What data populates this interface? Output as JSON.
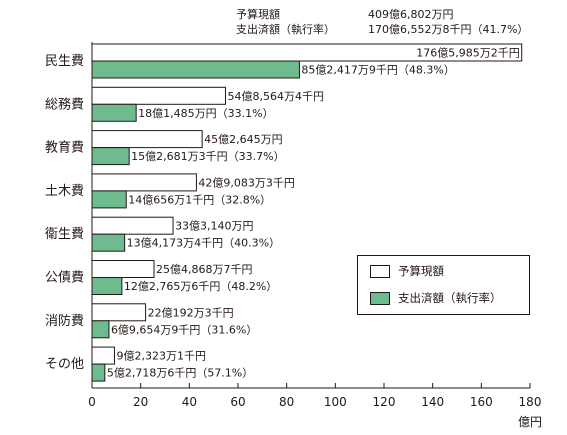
{
  "header": {
    "budget_label": "予算現額",
    "budget_value": "409億6,802万円",
    "spent_label": "支出済額（執行率）",
    "spent_value": "170億6,552万8千円（41.7%）"
  },
  "legend": {
    "budget": "予算現額",
    "spent": "支出済額（執行率）"
  },
  "colors": {
    "budget_fill": "#ffffff",
    "spent_fill": "#6dbb8f",
    "stroke": "#231815"
  },
  "chart_data": {
    "type": "bar",
    "orientation": "horizontal",
    "unit_label": "億円",
    "xlim": [
      0,
      180
    ],
    "xticks": [
      0,
      20,
      40,
      60,
      80,
      100,
      120,
      140,
      160,
      180
    ],
    "grid": false,
    "legend_position": "bottom-right",
    "categories": [
      "民生費",
      "総務費",
      "教育費",
      "土木費",
      "衛生費",
      "公債費",
      "消防費",
      "その他"
    ],
    "series": [
      {
        "name": "予算現額",
        "values": [
          176.59852,
          54.85644,
          45.2645,
          42.90833,
          33.314,
          25.48687,
          22.01923,
          9.23231
        ],
        "labels": [
          "176億5,985万2千円",
          "54億8,564万4千円",
          "45億2,645万円",
          "42億9,083万3千円",
          "33億3,140万円",
          "25億4,868万7千円",
          "22億192万3千円",
          "9億2,323万1千円"
        ]
      },
      {
        "name": "支出済額（執行率）",
        "values": [
          85.24179,
          18.1485,
          15.26813,
          14.0656,
          13.41734,
          12.27656,
          6.96549,
          5.27186
        ],
        "labels": [
          "85億2,417万9千円（48.3%）",
          "18億1,485万円（33.1%）",
          "15億2,681万3千円（33.7%）",
          "14億656万1千円（32.8%）",
          "13億4,173万4千円（40.3%）",
          "12億2,765万6千円（48.2%）",
          "6億9,654万9千円（31.6%）",
          "5億2,718万6千円（57.1%）"
        ]
      }
    ]
  }
}
